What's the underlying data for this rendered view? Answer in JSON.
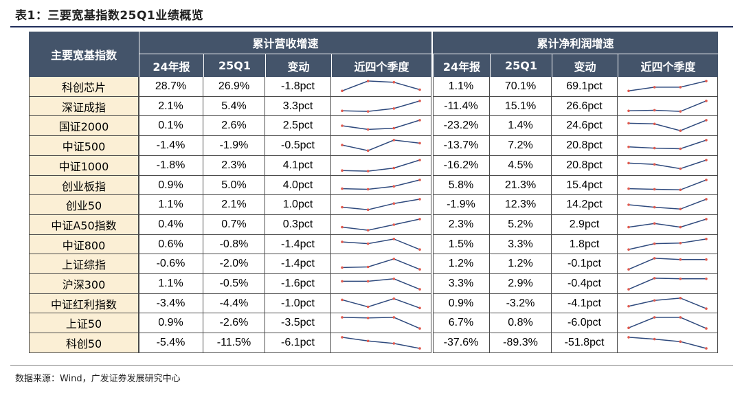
{
  "title": "表1：三要宽基指数25Q1业绩概览",
  "source": "数据来源：Wind，广发证券发展研究中心",
  "colors": {
    "header": "#44546A",
    "name_bg": "#FBEFD5",
    "spark": "#2F4A7D",
    "dot": "#E05A4F"
  },
  "header": {
    "index_col": "主要宽基指数",
    "group_revenue": "累计营收增速",
    "group_profit": "累计净利润增速",
    "sub": [
      "24年报",
      "25Q1",
      "变动",
      "近四个季度"
    ]
  },
  "rows": [
    {
      "name": "科创芯片",
      "rev": [
        "28.7%",
        "26.9%",
        "-1.8pct"
      ],
      "profit": [
        "1.1%",
        "70.1%",
        "69.1pct"
      ]
    },
    {
      "name": "深证成指",
      "rev": [
        "2.1%",
        "5.4%",
        "3.3pct"
      ],
      "profit": [
        "-11.4%",
        "15.1%",
        "26.6pct"
      ]
    },
    {
      "name": "国证2000",
      "rev": [
        "0.1%",
        "2.6%",
        "2.5pct"
      ],
      "profit": [
        "-23.2%",
        "1.4%",
        "24.6pct"
      ]
    },
    {
      "name": "中证500",
      "rev": [
        "-1.4%",
        "-1.9%",
        "-0.5pct"
      ],
      "profit": [
        "-13.7%",
        "7.2%",
        "20.8pct"
      ]
    },
    {
      "name": "中证1000",
      "rev": [
        "-1.8%",
        "2.3%",
        "4.1pct"
      ],
      "profit": [
        "-16.2%",
        "4.5%",
        "20.8pct"
      ]
    },
    {
      "name": "创业板指",
      "rev": [
        "0.9%",
        "5.0%",
        "4.0pct"
      ],
      "profit": [
        "5.8%",
        "21.3%",
        "15.4pct"
      ]
    },
    {
      "name": "创业50",
      "rev": [
        "1.1%",
        "2.1%",
        "1.0pct"
      ],
      "profit": [
        "-1.9%",
        "12.3%",
        "14.2pct"
      ]
    },
    {
      "name": "中证A50指数",
      "rev": [
        "0.4%",
        "0.7%",
        "0.3pct"
      ],
      "profit": [
        "2.3%",
        "5.2%",
        "2.9pct"
      ]
    },
    {
      "name": "中证800",
      "rev": [
        "0.6%",
        "-0.8%",
        "-1.4pct"
      ],
      "profit": [
        "1.5%",
        "3.3%",
        "1.8pct"
      ]
    },
    {
      "name": "上证综指",
      "rev": [
        "-0.6%",
        "-2.0%",
        "-1.4pct"
      ],
      "profit": [
        "1.2%",
        "1.2%",
        "-0.1pct"
      ]
    },
    {
      "name": "沪深300",
      "rev": [
        "1.1%",
        "-0.5%",
        "-1.6pct"
      ],
      "profit": [
        "3.3%",
        "2.9%",
        "-0.4pct"
      ]
    },
    {
      "name": "中证红利指数",
      "rev": [
        "-3.4%",
        "-4.4%",
        "-1.0pct"
      ],
      "profit": [
        "0.9%",
        "-3.2%",
        "-4.1pct"
      ]
    },
    {
      "name": "上证50",
      "rev": [
        "0.9%",
        "-2.6%",
        "-3.5pct"
      ],
      "profit": [
        "6.7%",
        "0.8%",
        "-6.0pct"
      ]
    },
    {
      "name": "科创50",
      "rev": [
        "-5.4%",
        "-11.5%",
        "-6.1pct"
      ],
      "profit": [
        "-37.6%",
        "-89.3%",
        "-51.8pct"
      ]
    }
  ],
  "sparklines": {
    "revenue": [
      [
        0.15,
        0.95,
        0.85,
        0.25
      ],
      [
        0.1,
        0.05,
        0.3,
        0.95
      ],
      [
        0.5,
        0.2,
        0.3,
        0.95
      ],
      [
        0.55,
        0.1,
        0.95,
        0.7
      ],
      [
        0.1,
        0.05,
        0.3,
        0.95
      ],
      [
        0.2,
        0.15,
        0.4,
        0.95
      ],
      [
        0.3,
        0.1,
        0.6,
        0.95
      ],
      [
        0.3,
        0.05,
        0.5,
        0.95
      ],
      [
        0.7,
        0.55,
        0.95,
        0.05
      ],
      [
        0.2,
        0.25,
        0.9,
        0.05
      ],
      [
        0.7,
        0.7,
        0.9,
        0.05
      ],
      [
        0.8,
        0.2,
        0.9,
        0.1
      ],
      [
        0.95,
        0.9,
        0.95,
        0.05
      ],
      [
        0.95,
        0.65,
        0.45,
        0.05
      ]
    ],
    "profit": [
      [
        0.15,
        0.45,
        0.45,
        0.95
      ],
      [
        0.1,
        0.15,
        0.05,
        0.95
      ],
      [
        0.7,
        0.65,
        0.1,
        0.95
      ],
      [
        0.4,
        0.3,
        0.25,
        0.95
      ],
      [
        0.7,
        0.6,
        0.25,
        0.95
      ],
      [
        0.2,
        0.15,
        0.1,
        0.95
      ],
      [
        0.5,
        0.3,
        0.15,
        0.95
      ],
      [
        0.3,
        0.6,
        0.3,
        0.95
      ],
      [
        0.05,
        0.55,
        0.6,
        0.95
      ],
      [
        0.05,
        0.95,
        0.85,
        0.85
      ],
      [
        0.05,
        0.95,
        0.9,
        0.9
      ],
      [
        0.25,
        0.75,
        0.95,
        0.05
      ],
      [
        0.1,
        0.95,
        0.95,
        0.05
      ],
      [
        0.95,
        0.8,
        0.6,
        0.05
      ]
    ]
  }
}
